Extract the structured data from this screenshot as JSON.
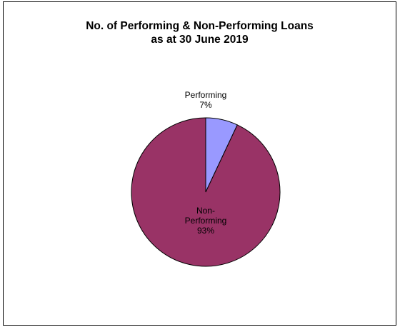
{
  "chart_data": {
    "type": "pie",
    "title_lines": [
      "No. of Performing & Non-Performing Loans",
      "as at 30 June 2019"
    ],
    "slices": [
      {
        "name": "Performing",
        "label_lines": [
          "Performing"
        ],
        "percent": 7,
        "percent_label": "7%",
        "color": "#9999ff"
      },
      {
        "name": "Non-Performing",
        "label_lines": [
          "Non-",
          "Performing"
        ],
        "percent": 93,
        "percent_label": "93%",
        "color": "#993366"
      }
    ],
    "start_angle": "12 o'clock",
    "direction": "clockwise",
    "border_color": "#000000"
  }
}
